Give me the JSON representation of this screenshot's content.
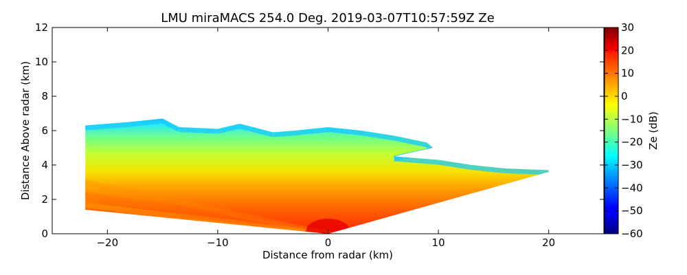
{
  "chart_data": {
    "type": "heatmap",
    "title": "LMU miraMACS 254.0 Deg. 2019-03-07T10:57:59Z  Ze",
    "xlabel": "Distance from radar (km)",
    "ylabel": "Distance Above radar  (km)",
    "xlim": [
      -25,
      25
    ],
    "ylim": [
      0,
      12
    ],
    "x_ticks": [
      -20,
      -10,
      0,
      10,
      20
    ],
    "x_tick_labels": [
      "−20",
      "−10",
      "0",
      "10",
      "20"
    ],
    "y_ticks": [
      0,
      2,
      4,
      6,
      8,
      10,
      12
    ],
    "y_tick_labels": [
      "0",
      "2",
      "4",
      "6",
      "8",
      "10",
      "12"
    ],
    "colorbar": {
      "label": "Ze (dB)",
      "range": [
        -60,
        30
      ],
      "ticks": [
        30,
        20,
        10,
        0,
        -10,
        -20,
        -30,
        -40,
        -50,
        -60
      ],
      "tick_labels": [
        "30",
        "20",
        "10",
        "0",
        "−10",
        "−20",
        "−30",
        "−40",
        "−50",
        "−60"
      ],
      "colormap": "jet"
    },
    "echo_region": {
      "description_units": "km",
      "top_boundary_left_to_right": [
        [
          -22,
          6.3
        ],
        [
          -18,
          6.5
        ],
        [
          -15,
          6.7
        ],
        [
          -13.5,
          6.2
        ],
        [
          -10,
          6.1
        ],
        [
          -8,
          6.4
        ],
        [
          -5,
          5.9
        ],
        [
          -3,
          6.0
        ],
        [
          0,
          6.2
        ],
        [
          3,
          6.0
        ],
        [
          6,
          5.7
        ],
        [
          9,
          5.3
        ],
        [
          9.5,
          5.0
        ],
        [
          6,
          4.5
        ],
        [
          10,
          4.3
        ],
        [
          13,
          4.0
        ],
        [
          16,
          3.8
        ],
        [
          20,
          3.7
        ]
      ],
      "bottom_left_edge": [
        [
          -22,
          1.4
        ],
        [
          0,
          0
        ]
      ],
      "bottom_right_edge": [
        [
          0,
          0
        ],
        [
          20,
          3.6
        ]
      ],
      "core_max_ze_dB": 28,
      "core_location": [
        0,
        0.5
      ]
    }
  }
}
